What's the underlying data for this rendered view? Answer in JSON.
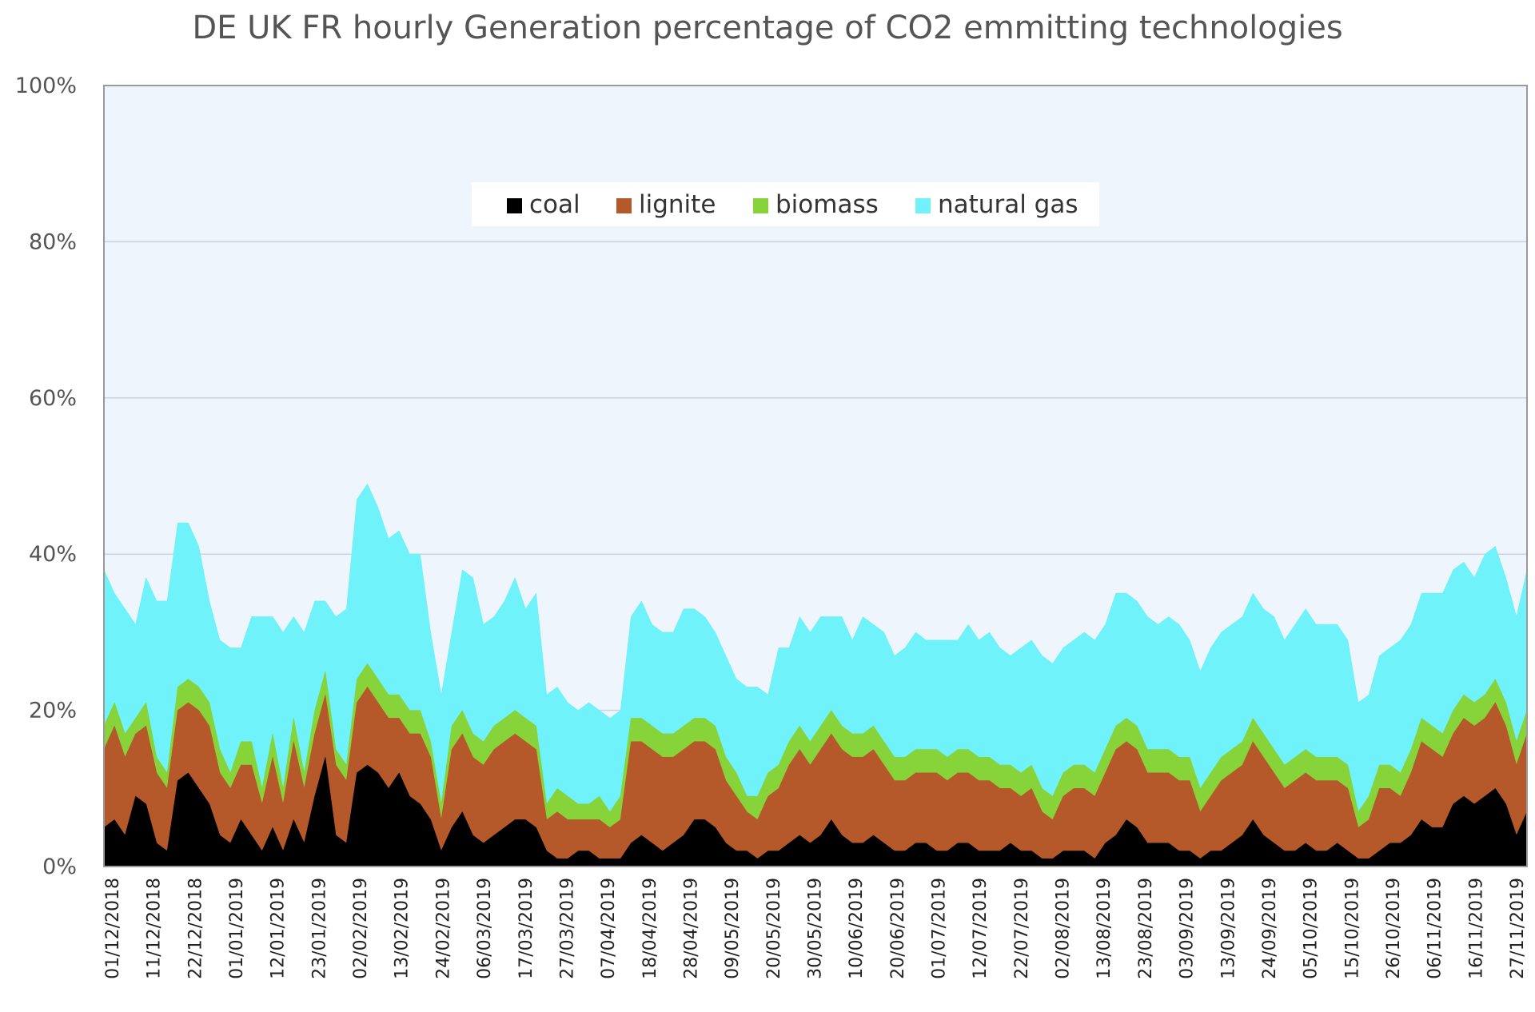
{
  "chart_data": {
    "type": "area",
    "stacked": true,
    "title": "DE UK FR hourly Generation percentage of CO2 emmitting technologies",
    "xlabel": "",
    "ylabel": "",
    "ylim": [
      0,
      100
    ],
    "yticks": [
      "0%",
      "20%",
      "40%",
      "60%",
      "80%",
      "100%"
    ],
    "x_range": [
      "01/12/2018",
      "30/11/2019"
    ],
    "x_ticks": [
      "01/12/2018",
      "11/12/2018",
      "22/12/2018",
      "01/01/2019",
      "12/01/2019",
      "23/01/2019",
      "02/02/2019",
      "13/02/2019",
      "24/02/2019",
      "06/03/2019",
      "17/03/2019",
      "27/03/2019",
      "07/04/2019",
      "18/04/2019",
      "28/04/2019",
      "09/05/2019",
      "20/05/2019",
      "30/05/2019",
      "10/06/2019",
      "20/06/2019",
      "01/07/2019",
      "12/07/2019",
      "22/07/2019",
      "02/08/2019",
      "13/08/2019",
      "23/08/2019",
      "03/09/2019",
      "13/09/2019",
      "24/09/2019",
      "05/10/2019",
      "15/10/2019",
      "26/10/2019",
      "06/11/2019",
      "16/11/2019",
      "27/11/2019"
    ],
    "grid": true,
    "legend_position": "top-center",
    "series": [
      {
        "name": "coal",
        "color": "#000000",
        "values": [
          5,
          6,
          4,
          9,
          8,
          3,
          2,
          11,
          12,
          10,
          8,
          4,
          3,
          6,
          4,
          2,
          5,
          2,
          6,
          3,
          9,
          14,
          4,
          3,
          12,
          13,
          12,
          10,
          12,
          9,
          8,
          6,
          2,
          5,
          7,
          4,
          3,
          4,
          5,
          6,
          6,
          5,
          2,
          1,
          1,
          2,
          2,
          1,
          1,
          1,
          3,
          4,
          3,
          2,
          3,
          4,
          6,
          6,
          5,
          3,
          2,
          2,
          1,
          2,
          2,
          3,
          4,
          3,
          4,
          6,
          4,
          3,
          3,
          4,
          3,
          2,
          2,
          3,
          3,
          2,
          2,
          3,
          3,
          2,
          2,
          2,
          3,
          2,
          2,
          1,
          1,
          2,
          2,
          2,
          1,
          3,
          4,
          6,
          5,
          3,
          3,
          3,
          2,
          2,
          1,
          2,
          2,
          3,
          4,
          6,
          4,
          3,
          2,
          2,
          3,
          2,
          2,
          3,
          2,
          1,
          1,
          2,
          3,
          3,
          4,
          6,
          5,
          5,
          8,
          9,
          8,
          9,
          10,
          8,
          4,
          7
        ]
      },
      {
        "name": "lignite",
        "color": "#b5592a",
        "values": [
          10,
          12,
          10,
          8,
          10,
          9,
          8,
          9,
          9,
          10,
          10,
          8,
          7,
          7,
          9,
          6,
          9,
          6,
          10,
          7,
          8,
          8,
          9,
          8,
          9,
          10,
          9,
          9,
          7,
          8,
          9,
          8,
          4,
          10,
          10,
          10,
          10,
          11,
          11,
          11,
          10,
          10,
          4,
          6,
          5,
          4,
          4,
          5,
          4,
          5,
          13,
          12,
          12,
          12,
          11,
          11,
          10,
          10,
          10,
          8,
          7,
          5,
          5,
          7,
          8,
          10,
          11,
          10,
          11,
          11,
          11,
          11,
          11,
          11,
          10,
          9,
          9,
          9,
          9,
          10,
          9,
          9,
          9,
          9,
          9,
          8,
          7,
          7,
          8,
          6,
          5,
          7,
          8,
          8,
          8,
          9,
          11,
          10,
          10,
          9,
          9,
          9,
          9,
          9,
          6,
          7,
          9,
          9,
          9,
          10,
          10,
          9,
          8,
          9,
          9,
          9,
          9,
          8,
          8,
          4,
          5,
          8,
          7,
          6,
          8,
          10,
          10,
          9,
          9,
          10,
          10,
          10,
          11,
          10,
          9,
          10
        ]
      },
      {
        "name": "biomass",
        "color": "#86d33a",
        "values": [
          3,
          3,
          3,
          2,
          3,
          2,
          2,
          3,
          3,
          3,
          3,
          3,
          2,
          3,
          3,
          2,
          3,
          2,
          3,
          2,
          3,
          3,
          2,
          2,
          3,
          3,
          3,
          3,
          3,
          3,
          3,
          2,
          2,
          3,
          3,
          3,
          3,
          3,
          3,
          3,
          3,
          3,
          2,
          3,
          3,
          2,
          2,
          3,
          2,
          3,
          3,
          3,
          3,
          3,
          3,
          3,
          3,
          3,
          3,
          3,
          3,
          2,
          3,
          3,
          3,
          3,
          3,
          3,
          3,
          3,
          3,
          3,
          3,
          3,
          3,
          3,
          3,
          3,
          3,
          3,
          3,
          3,
          3,
          3,
          3,
          3,
          3,
          3,
          3,
          3,
          3,
          3,
          3,
          3,
          3,
          3,
          3,
          3,
          3,
          3,
          3,
          3,
          3,
          3,
          3,
          3,
          3,
          3,
          3,
          3,
          3,
          3,
          3,
          3,
          3,
          3,
          3,
          3,
          3,
          2,
          3,
          3,
          3,
          3,
          3,
          3,
          3,
          3,
          3,
          3,
          3,
          3,
          3,
          3,
          3,
          3
        ]
      },
      {
        "name": "natural gas",
        "color": "#6ff2fa",
        "values": [
          20,
          14,
          16,
          12,
          16,
          20,
          22,
          21,
          20,
          18,
          13,
          14,
          16,
          12,
          16,
          22,
          15,
          20,
          13,
          18,
          14,
          9,
          17,
          20,
          23,
          23,
          22,
          20,
          21,
          20,
          20,
          14,
          14,
          12,
          18,
          20,
          15,
          14,
          15,
          17,
          14,
          17,
          14,
          13,
          12,
          12,
          13,
          11,
          12,
          11,
          13,
          15,
          13,
          13,
          13,
          15,
          14,
          13,
          12,
          13,
          12,
          14,
          14,
          10,
          15,
          12,
          14,
          14,
          14,
          12,
          14,
          12,
          15,
          13,
          14,
          13,
          14,
          15,
          14,
          14,
          15,
          14,
          16,
          15,
          16,
          15,
          14,
          16,
          16,
          17,
          17,
          16,
          16,
          17,
          17,
          16,
          17,
          16,
          16,
          17,
          16,
          17,
          17,
          15,
          15,
          16,
          16,
          16,
          16,
          16,
          16,
          17,
          16,
          17,
          18,
          17,
          17,
          17,
          16,
          14,
          13,
          14,
          15,
          17,
          16,
          16,
          17,
          18,
          18,
          17,
          16,
          18,
          17,
          16,
          16,
          18
        ]
      }
    ]
  }
}
